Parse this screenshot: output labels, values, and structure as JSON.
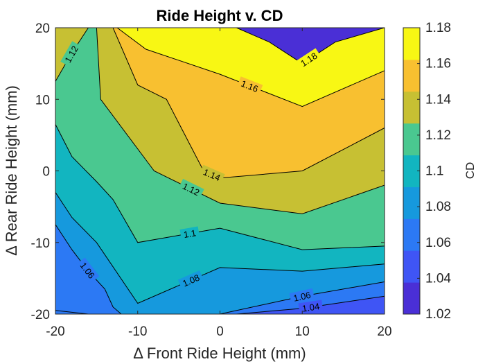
{
  "chart_data": {
    "type": "contour",
    "title": "Ride Height v. CD",
    "xlabel": "Δ Front Ride Height (mm)",
    "ylabel": "Δ Rear Ride Height (mm)",
    "colorbar_label": "CD",
    "xlim": [
      -20,
      20
    ],
    "ylim": [
      -20,
      20
    ],
    "clim": [
      1.02,
      1.18
    ],
    "x_ticks": [
      "-20",
      "-10",
      "0",
      "10",
      "20"
    ],
    "y_ticks": [
      "20",
      "10",
      "0",
      "-10",
      "-20"
    ],
    "colorbar_ticks": [
      "1.18",
      "1.16",
      "1.14",
      "1.12",
      "1.1",
      "1.08",
      "1.06",
      "1.04",
      "1.02"
    ],
    "contour_levels": [
      1.04,
      1.06,
      1.08,
      1.1,
      1.12,
      1.14,
      1.16,
      1.18
    ],
    "level_colors": {
      "1.02": "#4a2fd6",
      "1.04": "#3f55f5",
      "1.06": "#2c79f4",
      "1.08": "#1699dd",
      "1.1": "#12b5c0",
      "1.12": "#4ac890",
      "1.14": "#c7c033",
      "1.16": "#f8c030",
      "1.18": "#f8f714"
    },
    "contour_lines": [
      {
        "level": "1.04",
        "label": "1.04",
        "points": [
          [
            2,
            -20
          ],
          [
            10,
            -19.2
          ],
          [
            20,
            -17.5
          ]
        ]
      },
      {
        "level": "1.06",
        "label": "1.06",
        "points": [
          [
            -20,
            -7.5
          ],
          [
            -18,
            -11
          ],
          [
            -16,
            -14
          ],
          [
            -14,
            -16.5
          ],
          [
            -13,
            -19
          ],
          [
            -12,
            -20
          ]
        ]
      },
      {
        "level": "1.06",
        "label": "1.06",
        "points": [
          [
            0,
            -20
          ],
          [
            10,
            -17.5
          ],
          [
            20,
            -15.5
          ]
        ]
      },
      {
        "level": "1.08",
        "label": "1.08",
        "points": [
          [
            -20,
            -3
          ],
          [
            -18,
            -6.5
          ],
          [
            -15,
            -10
          ],
          [
            -10,
            -18.5
          ],
          [
            0,
            -13.5
          ],
          [
            10,
            -14
          ],
          [
            20,
            -13
          ]
        ]
      },
      {
        "level": "1.08",
        "label": "",
        "points": [
          [
            -20,
            -19.5
          ],
          [
            -16,
            -20
          ]
        ]
      },
      {
        "level": "1.1",
        "label": "1.1",
        "points": [
          [
            -20,
            6.5
          ],
          [
            -18,
            2
          ],
          [
            -15,
            -1.5
          ],
          [
            -13,
            -4
          ],
          [
            -10,
            -10
          ],
          [
            0,
            -8
          ],
          [
            10,
            -11
          ],
          [
            20,
            -10.5
          ]
        ]
      },
      {
        "level": "1.12",
        "label": "1.12",
        "points": [
          [
            -20,
            12.5
          ],
          [
            -18,
            16.5
          ],
          [
            -16,
            20
          ]
        ]
      },
      {
        "level": "1.12",
        "label": "1.12",
        "points": [
          [
            -15,
            20
          ],
          [
            -14.5,
            10
          ],
          [
            -8,
            0
          ],
          [
            0,
            -4.5
          ],
          [
            10,
            -6
          ],
          [
            20,
            -2
          ]
        ]
      },
      {
        "level": "1.14",
        "label": "1.14",
        "points": [
          [
            -13,
            20
          ],
          [
            -10,
            12
          ],
          [
            -6.5,
            10
          ],
          [
            -2,
            0
          ],
          [
            0,
            -1
          ],
          [
            10,
            0
          ],
          [
            20,
            6
          ]
        ]
      },
      {
        "level": "1.16",
        "label": "1.16",
        "points": [
          [
            -12.5,
            20
          ],
          [
            -9,
            17
          ],
          [
            0,
            13.5
          ],
          [
            10,
            9
          ],
          [
            20,
            14
          ]
        ]
      },
      {
        "level": "1.18",
        "label": "1.18",
        "points": [
          [
            2,
            20
          ],
          [
            6,
            18
          ],
          [
            10,
            15
          ],
          [
            14,
            18
          ],
          [
            20,
            20
          ]
        ]
      }
    ],
    "filled_regions": [
      {
        "level": "1.04",
        "points": [
          [
            -20,
            -20
          ],
          [
            20,
            -20
          ],
          [
            20,
            -17.5
          ],
          [
            10,
            -19.2
          ],
          [
            2,
            -20
          ]
        ]
      },
      {
        "level": "1.06",
        "points": [
          [
            -20,
            -20
          ],
          [
            20,
            -20
          ],
          [
            20,
            -15.5
          ],
          [
            10,
            -17.5
          ],
          [
            0,
            -20
          ]
        ]
      },
      {
        "level": "1.06",
        "points": [
          [
            -20,
            -20
          ],
          [
            -12,
            -20
          ],
          [
            -13,
            -19
          ],
          [
            -14,
            -16.5
          ],
          [
            -16,
            -14
          ],
          [
            -18,
            -11
          ],
          [
            -20,
            -7.5
          ]
        ]
      },
      {
        "level": "1.08",
        "points": [
          [
            -20,
            -20
          ],
          [
            20,
            -20
          ],
          [
            20,
            -13
          ],
          [
            10,
            -14
          ],
          [
            0,
            -13.5
          ],
          [
            -10,
            -18.5
          ],
          [
            -15,
            -10
          ],
          [
            -18,
            -6.5
          ],
          [
            -20,
            -3
          ]
        ]
      },
      {
        "level": "1.1",
        "points": [
          [
            -20,
            -20
          ],
          [
            20,
            -20
          ],
          [
            20,
            -10.5
          ],
          [
            10,
            -11
          ],
          [
            0,
            -8
          ],
          [
            -10,
            -10
          ],
          [
            -13,
            -4
          ],
          [
            -15,
            -1.5
          ],
          [
            -18,
            2
          ],
          [
            -20,
            6.5
          ]
        ]
      },
      {
        "level": "1.12",
        "points": [
          [
            -20,
            -20
          ],
          [
            20,
            -20
          ],
          [
            20,
            -2
          ],
          [
            10,
            -6
          ],
          [
            0,
            -4.5
          ],
          [
            -8,
            0
          ],
          [
            -14.5,
            10
          ],
          [
            -15,
            20
          ],
          [
            -16,
            20
          ],
          [
            -18,
            16.5
          ],
          [
            -20,
            12.5
          ]
        ]
      },
      {
        "level": "1.14",
        "points": [
          [
            -20,
            -20
          ],
          [
            20,
            -20
          ],
          [
            20,
            6
          ],
          [
            10,
            0
          ],
          [
            0,
            -1
          ],
          [
            -2,
            0
          ],
          [
            -6.5,
            10
          ],
          [
            -10,
            12
          ],
          [
            -13,
            20
          ],
          [
            -20,
            20
          ]
        ]
      },
      {
        "level": "1.16",
        "points": [
          [
            -20,
            -20
          ],
          [
            20,
            -20
          ],
          [
            20,
            14
          ],
          [
            10,
            9
          ],
          [
            0,
            13.5
          ],
          [
            -9,
            17
          ],
          [
            -12.5,
            20
          ],
          [
            -20,
            20
          ]
        ]
      },
      {
        "level": "1.18",
        "points": [
          [
            -20,
            -20
          ],
          [
            20,
            -20
          ],
          [
            20,
            20
          ],
          [
            14,
            18
          ],
          [
            10,
            15
          ],
          [
            6,
            18
          ],
          [
            2,
            20
          ],
          [
            -20,
            20
          ]
        ]
      }
    ]
  }
}
